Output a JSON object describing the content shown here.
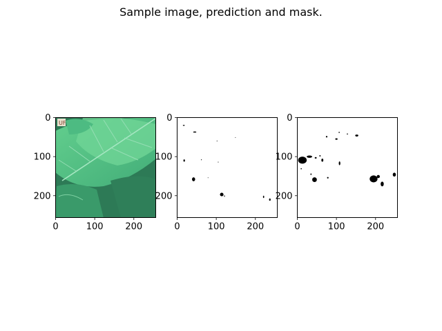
{
  "figure": {
    "title": "Sample image, prediction and mask."
  },
  "chart_data": [
    {
      "type": "image",
      "panel": "sample-image",
      "xlim": [
        0,
        256
      ],
      "ylim": [
        256,
        0
      ],
      "xticks": [
        0,
        100,
        200
      ],
      "yticks": [
        0,
        100,
        200
      ],
      "watermark_text": "UF"
    },
    {
      "type": "image",
      "panel": "prediction",
      "xlim": [
        0,
        256
      ],
      "ylim": [
        256,
        0
      ],
      "xticks": [
        0,
        100,
        200
      ],
      "yticks": [
        0,
        100,
        200
      ],
      "blobs": [
        {
          "x": 17,
          "y": 20,
          "rx": 2.5,
          "ry": 1.2
        },
        {
          "x": 45,
          "y": 37,
          "rx": 4,
          "ry": 1.5
        },
        {
          "x": 102,
          "y": 60,
          "rx": 1,
          "ry": 1
        },
        {
          "x": 149,
          "y": 51,
          "rx": 0.8,
          "ry": 0.8
        },
        {
          "x": 18,
          "y": 110,
          "rx": 2,
          "ry": 3
        },
        {
          "x": 62,
          "y": 108,
          "rx": 1,
          "ry": 1.2
        },
        {
          "x": 105,
          "y": 114,
          "rx": 1,
          "ry": 1
        },
        {
          "x": 42,
          "y": 158,
          "rx": 4,
          "ry": 5
        },
        {
          "x": 79,
          "y": 154,
          "rx": 0.8,
          "ry": 0.8
        },
        {
          "x": 114,
          "y": 197,
          "rx": 4.5,
          "ry": 4.5
        },
        {
          "x": 121,
          "y": 201,
          "rx": 1,
          "ry": 2
        },
        {
          "x": 221,
          "y": 203,
          "rx": 1.5,
          "ry": 3
        },
        {
          "x": 237,
          "y": 210,
          "rx": 2,
          "ry": 3
        }
      ]
    },
    {
      "type": "image",
      "panel": "mask",
      "xlim": [
        0,
        256
      ],
      "ylim": [
        256,
        0
      ],
      "xticks": [
        0,
        100,
        200
      ],
      "yticks": [
        0,
        100,
        200
      ],
      "blobs": [
        {
          "x": 13,
          "y": 109,
          "rx": 11,
          "ry": 9
        },
        {
          "x": 31,
          "y": 100,
          "rx": 7,
          "ry": 3
        },
        {
          "x": 47,
          "y": 103,
          "rx": 2.5,
          "ry": 2
        },
        {
          "x": 58,
          "y": 98,
          "rx": 1.5,
          "ry": 2
        },
        {
          "x": 64,
          "y": 109,
          "rx": 2.5,
          "ry": 4
        },
        {
          "x": 10,
          "y": 131,
          "rx": 1.5,
          "ry": 1.5
        },
        {
          "x": 35,
          "y": 145,
          "rx": 1.5,
          "ry": 2
        },
        {
          "x": 44,
          "y": 159,
          "rx": 6,
          "ry": 6
        },
        {
          "x": 78,
          "y": 154,
          "rx": 2,
          "ry": 2
        },
        {
          "x": 75,
          "y": 49,
          "rx": 2,
          "ry": 2
        },
        {
          "x": 100,
          "y": 55,
          "rx": 3,
          "ry": 2
        },
        {
          "x": 107,
          "y": 38,
          "rx": 1.5,
          "ry": 1.5
        },
        {
          "x": 128,
          "y": 42,
          "rx": 1.5,
          "ry": 1.5
        },
        {
          "x": 152,
          "y": 46,
          "rx": 4,
          "ry": 2.5
        },
        {
          "x": 108,
          "y": 117,
          "rx": 2,
          "ry": 5
        },
        {
          "x": 195,
          "y": 157,
          "rx": 10,
          "ry": 9
        },
        {
          "x": 207,
          "y": 151,
          "rx": 4,
          "ry": 4
        },
        {
          "x": 217,
          "y": 170,
          "rx": 4,
          "ry": 6
        },
        {
          "x": 248,
          "y": 146,
          "rx": 4,
          "ry": 5
        }
      ]
    }
  ]
}
